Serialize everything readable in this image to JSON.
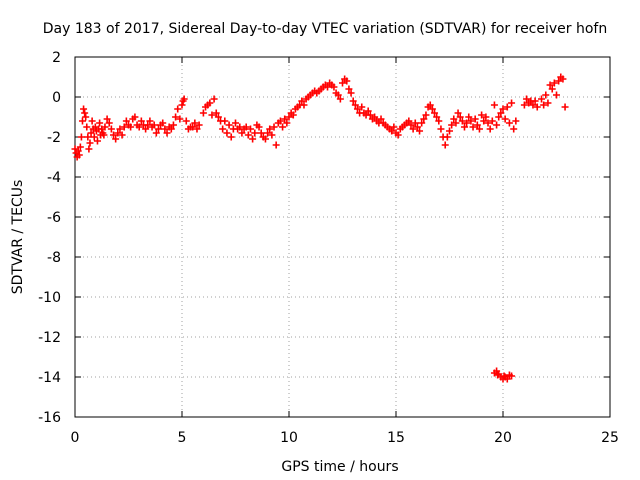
{
  "chart_data": {
    "type": "scatter",
    "title": "Day 183 of 2017, Sidereal Day-to-day VTEC variation (SDTVAR) for receiver hofn",
    "xlabel": "GPS time / hours",
    "ylabel": "SDTVAR / TECUs",
    "xlim": [
      0,
      25
    ],
    "ylim": [
      -16,
      2
    ],
    "x_ticks": [
      0,
      5,
      10,
      15,
      20,
      25
    ],
    "y_ticks": [
      2,
      0,
      -2,
      -4,
      -6,
      -8,
      -10,
      -12,
      -14,
      -16
    ],
    "grid": true,
    "marker": "+",
    "series": [
      {
        "name": "SDTVAR",
        "color": "#ff0000",
        "points": [
          [
            0.0,
            -2.6
          ],
          [
            0.05,
            -2.8
          ],
          [
            0.1,
            -3.0
          ],
          [
            0.15,
            -2.7
          ],
          [
            0.2,
            -2.9
          ],
          [
            0.25,
            -2.5
          ],
          [
            0.3,
            -2.0
          ],
          [
            0.35,
            -1.2
          ],
          [
            0.4,
            -0.6
          ],
          [
            0.45,
            -0.8
          ],
          [
            0.5,
            -1.0
          ],
          [
            0.55,
            -1.5
          ],
          [
            0.6,
            -2.0
          ],
          [
            0.65,
            -2.6
          ],
          [
            0.7,
            -2.3
          ],
          [
            0.75,
            -1.8
          ],
          [
            0.8,
            -1.2
          ],
          [
            0.85,
            -1.6
          ],
          [
            0.9,
            -2.0
          ],
          [
            0.95,
            -1.5
          ],
          [
            1.0,
            -1.7
          ],
          [
            1.05,
            -2.2
          ],
          [
            1.1,
            -1.6
          ],
          [
            1.15,
            -1.3
          ],
          [
            1.2,
            -1.9
          ],
          [
            1.25,
            -1.6
          ],
          [
            1.3,
            -1.8
          ],
          [
            1.35,
            -1.9
          ],
          [
            1.4,
            -1.5
          ],
          [
            1.5,
            -1.1
          ],
          [
            1.6,
            -1.3
          ],
          [
            1.7,
            -1.6
          ],
          [
            1.8,
            -1.9
          ],
          [
            1.9,
            -2.1
          ],
          [
            2.0,
            -1.8
          ],
          [
            2.1,
            -1.6
          ],
          [
            2.2,
            -1.9
          ],
          [
            2.3,
            -1.5
          ],
          [
            2.4,
            -1.2
          ],
          [
            2.5,
            -1.4
          ],
          [
            2.6,
            -1.5
          ],
          [
            2.7,
            -1.1
          ],
          [
            2.8,
            -1.0
          ],
          [
            2.9,
            -1.4
          ],
          [
            3.0,
            -1.5
          ],
          [
            3.1,
            -1.2
          ],
          [
            3.2,
            -1.4
          ],
          [
            3.3,
            -1.6
          ],
          [
            3.4,
            -1.4
          ],
          [
            3.5,
            -1.2
          ],
          [
            3.6,
            -1.5
          ],
          [
            3.7,
            -1.4
          ],
          [
            3.8,
            -1.8
          ],
          [
            3.9,
            -1.6
          ],
          [
            4.0,
            -1.4
          ],
          [
            4.1,
            -1.3
          ],
          [
            4.2,
            -1.6
          ],
          [
            4.3,
            -1.8
          ],
          [
            4.4,
            -1.5
          ],
          [
            4.5,
            -1.6
          ],
          [
            4.6,
            -1.4
          ],
          [
            4.7,
            -1.0
          ],
          [
            4.8,
            -0.6
          ],
          [
            4.9,
            -1.1
          ],
          [
            5.0,
            -0.4
          ],
          [
            5.05,
            -0.2
          ],
          [
            5.1,
            -0.1
          ],
          [
            5.2,
            -1.2
          ],
          [
            5.3,
            -1.6
          ],
          [
            5.4,
            -1.5
          ],
          [
            5.5,
            -1.5
          ],
          [
            5.6,
            -1.3
          ],
          [
            5.7,
            -1.6
          ],
          [
            5.8,
            -1.4
          ],
          [
            6.0,
            -0.8
          ],
          [
            6.1,
            -0.5
          ],
          [
            6.2,
            -0.4
          ],
          [
            6.3,
            -0.3
          ],
          [
            6.4,
            -0.9
          ],
          [
            6.5,
            -0.1
          ],
          [
            6.6,
            -0.8
          ],
          [
            6.7,
            -1.0
          ],
          [
            6.8,
            -1.2
          ],
          [
            6.9,
            -1.6
          ],
          [
            7.0,
            -1.2
          ],
          [
            7.1,
            -1.8
          ],
          [
            7.2,
            -1.4
          ],
          [
            7.3,
            -2.0
          ],
          [
            7.4,
            -1.6
          ],
          [
            7.5,
            -1.3
          ],
          [
            7.6,
            -1.6
          ],
          [
            7.7,
            -1.5
          ],
          [
            7.8,
            -1.8
          ],
          [
            7.9,
            -1.6
          ],
          [
            8.0,
            -1.5
          ],
          [
            8.1,
            -1.9
          ],
          [
            8.2,
            -1.6
          ],
          [
            8.3,
            -2.1
          ],
          [
            8.4,
            -1.8
          ],
          [
            8.5,
            -1.4
          ],
          [
            8.6,
            -1.5
          ],
          [
            8.7,
            -1.8
          ],
          [
            8.8,
            -2.0
          ],
          [
            8.9,
            -2.1
          ],
          [
            9.0,
            -1.8
          ],
          [
            9.1,
            -1.6
          ],
          [
            9.2,
            -1.9
          ],
          [
            9.3,
            -1.5
          ],
          [
            9.4,
            -2.4
          ],
          [
            9.5,
            -1.3
          ],
          [
            9.6,
            -1.2
          ],
          [
            9.7,
            -1.5
          ],
          [
            9.8,
            -1.1
          ],
          [
            9.9,
            -1.3
          ],
          [
            10.0,
            -1.0
          ],
          [
            10.1,
            -0.8
          ],
          [
            10.2,
            -0.9
          ],
          [
            10.3,
            -0.6
          ],
          [
            10.4,
            -0.5
          ],
          [
            10.5,
            -0.4
          ],
          [
            10.6,
            -0.2
          ],
          [
            10.7,
            -0.4
          ],
          [
            10.8,
            -0.1
          ],
          [
            10.9,
            0.0
          ],
          [
            11.0,
            0.1
          ],
          [
            11.1,
            0.2
          ],
          [
            11.2,
            0.3
          ],
          [
            11.3,
            0.2
          ],
          [
            11.4,
            0.3
          ],
          [
            11.5,
            0.4
          ],
          [
            11.6,
            0.5
          ],
          [
            11.7,
            0.6
          ],
          [
            11.8,
            0.5
          ],
          [
            11.9,
            0.7
          ],
          [
            12.0,
            0.6
          ],
          [
            12.1,
            0.5
          ],
          [
            12.2,
            0.2
          ],
          [
            12.3,
            0.1
          ],
          [
            12.4,
            -0.1
          ],
          [
            12.5,
            0.7
          ],
          [
            12.6,
            0.9
          ],
          [
            12.7,
            0.8
          ],
          [
            12.8,
            0.4
          ],
          [
            12.9,
            0.2
          ],
          [
            13.0,
            -0.2
          ],
          [
            13.1,
            -0.4
          ],
          [
            13.2,
            -0.6
          ],
          [
            13.3,
            -0.8
          ],
          [
            13.4,
            -0.5
          ],
          [
            13.5,
            -0.8
          ],
          [
            13.6,
            -0.9
          ],
          [
            13.7,
            -0.7
          ],
          [
            13.8,
            -0.9
          ],
          [
            13.9,
            -1.1
          ],
          [
            14.0,
            -1.0
          ],
          [
            14.1,
            -1.2
          ],
          [
            14.2,
            -1.3
          ],
          [
            14.3,
            -1.1
          ],
          [
            14.4,
            -1.3
          ],
          [
            14.5,
            -1.4
          ],
          [
            14.6,
            -1.5
          ],
          [
            14.7,
            -1.6
          ],
          [
            14.8,
            -1.7
          ],
          [
            14.9,
            -1.5
          ],
          [
            15.0,
            -1.8
          ],
          [
            15.1,
            -1.9
          ],
          [
            15.2,
            -1.6
          ],
          [
            15.3,
            -1.5
          ],
          [
            15.4,
            -1.4
          ],
          [
            15.5,
            -1.3
          ],
          [
            15.6,
            -1.2
          ],
          [
            15.7,
            -1.4
          ],
          [
            15.8,
            -1.6
          ],
          [
            15.9,
            -1.3
          ],
          [
            16.0,
            -1.5
          ],
          [
            16.1,
            -1.7
          ],
          [
            16.2,
            -1.3
          ],
          [
            16.3,
            -1.1
          ],
          [
            16.4,
            -0.9
          ],
          [
            16.5,
            -0.5
          ],
          [
            16.6,
            -0.4
          ],
          [
            16.7,
            -0.6
          ],
          [
            16.8,
            -0.8
          ],
          [
            16.9,
            -1.0
          ],
          [
            17.0,
            -1.2
          ],
          [
            17.1,
            -1.6
          ],
          [
            17.2,
            -2.0
          ],
          [
            17.3,
            -2.4
          ],
          [
            17.4,
            -2.0
          ],
          [
            17.5,
            -1.7
          ],
          [
            17.6,
            -1.4
          ],
          [
            17.7,
            -1.1
          ],
          [
            17.8,
            -1.3
          ],
          [
            17.9,
            -0.8
          ],
          [
            18.0,
            -1.0
          ],
          [
            18.1,
            -1.2
          ],
          [
            18.2,
            -1.5
          ],
          [
            18.3,
            -1.3
          ],
          [
            18.4,
            -1.0
          ],
          [
            18.5,
            -1.2
          ],
          [
            18.6,
            -1.5
          ],
          [
            18.7,
            -1.1
          ],
          [
            18.8,
            -1.4
          ],
          [
            18.9,
            -1.6
          ],
          [
            19.0,
            -0.9
          ],
          [
            19.1,
            -1.2
          ],
          [
            19.2,
            -1.0
          ],
          [
            19.3,
            -1.3
          ],
          [
            19.4,
            -1.6
          ],
          [
            19.5,
            -1.2
          ],
          [
            19.6,
            -0.4
          ],
          [
            19.7,
            -1.4
          ],
          [
            19.8,
            -1.0
          ],
          [
            19.9,
            -0.8
          ],
          [
            20.0,
            -0.6
          ],
          [
            20.1,
            -1.1
          ],
          [
            20.2,
            -0.5
          ],
          [
            20.3,
            -1.3
          ],
          [
            20.4,
            -0.3
          ],
          [
            20.5,
            -1.6
          ],
          [
            20.6,
            -1.2
          ],
          [
            21.0,
            -0.4
          ],
          [
            21.1,
            -0.1
          ],
          [
            21.2,
            -0.3
          ],
          [
            21.3,
            -0.2
          ],
          [
            21.4,
            -0.4
          ],
          [
            21.5,
            -0.2
          ],
          [
            21.6,
            -0.5
          ],
          [
            21.8,
            -0.1
          ],
          [
            21.9,
            -0.4
          ],
          [
            22.0,
            0.1
          ],
          [
            22.1,
            -0.3
          ],
          [
            22.2,
            0.6
          ],
          [
            22.3,
            0.4
          ],
          [
            22.4,
            0.7
          ],
          [
            22.5,
            0.1
          ],
          [
            22.6,
            0.8
          ],
          [
            22.7,
            1.0
          ],
          [
            22.8,
            0.9
          ],
          [
            22.9,
            -0.5
          ],
          [
            19.6,
            -13.8
          ],
          [
            19.7,
            -13.7
          ],
          [
            19.75,
            -13.9
          ],
          [
            19.8,
            -13.85
          ],
          [
            19.9,
            -14.0
          ],
          [
            20.0,
            -14.1
          ],
          [
            20.05,
            -13.95
          ],
          [
            20.1,
            -14.0
          ],
          [
            20.2,
            -14.1
          ],
          [
            20.3,
            -13.9
          ],
          [
            20.4,
            -13.95
          ]
        ]
      }
    ]
  }
}
